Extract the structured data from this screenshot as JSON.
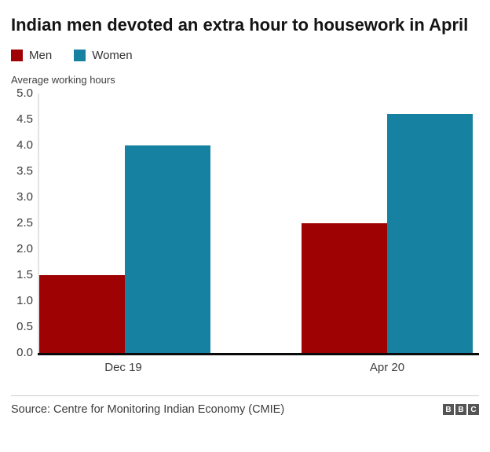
{
  "chart_data": {
    "type": "bar",
    "title": "Indian men devoted an extra hour to housework in April",
    "ylabel": "Average working hours",
    "xlabel": "",
    "categories": [
      "Dec 19",
      "Apr 20"
    ],
    "series": [
      {
        "name": "Men",
        "color": "#9e0202",
        "values": [
          1.5,
          2.5
        ]
      },
      {
        "name": "Women",
        "color": "#1781a1",
        "values": [
          4.0,
          4.6
        ]
      }
    ],
    "ylim": [
      0,
      5
    ],
    "ytick_step": 0.5,
    "yticks": [
      "5.0",
      "4.5",
      "4.0",
      "3.5",
      "3.0",
      "2.5",
      "2.0",
      "1.5",
      "1.0",
      "0.5",
      "0.0"
    ],
    "grid": false,
    "legend_position": "top-left"
  },
  "footer": {
    "source": "Source: Centre for Monitoring Indian Economy (CMIE)",
    "logo_letters": [
      "B",
      "B",
      "C"
    ]
  }
}
